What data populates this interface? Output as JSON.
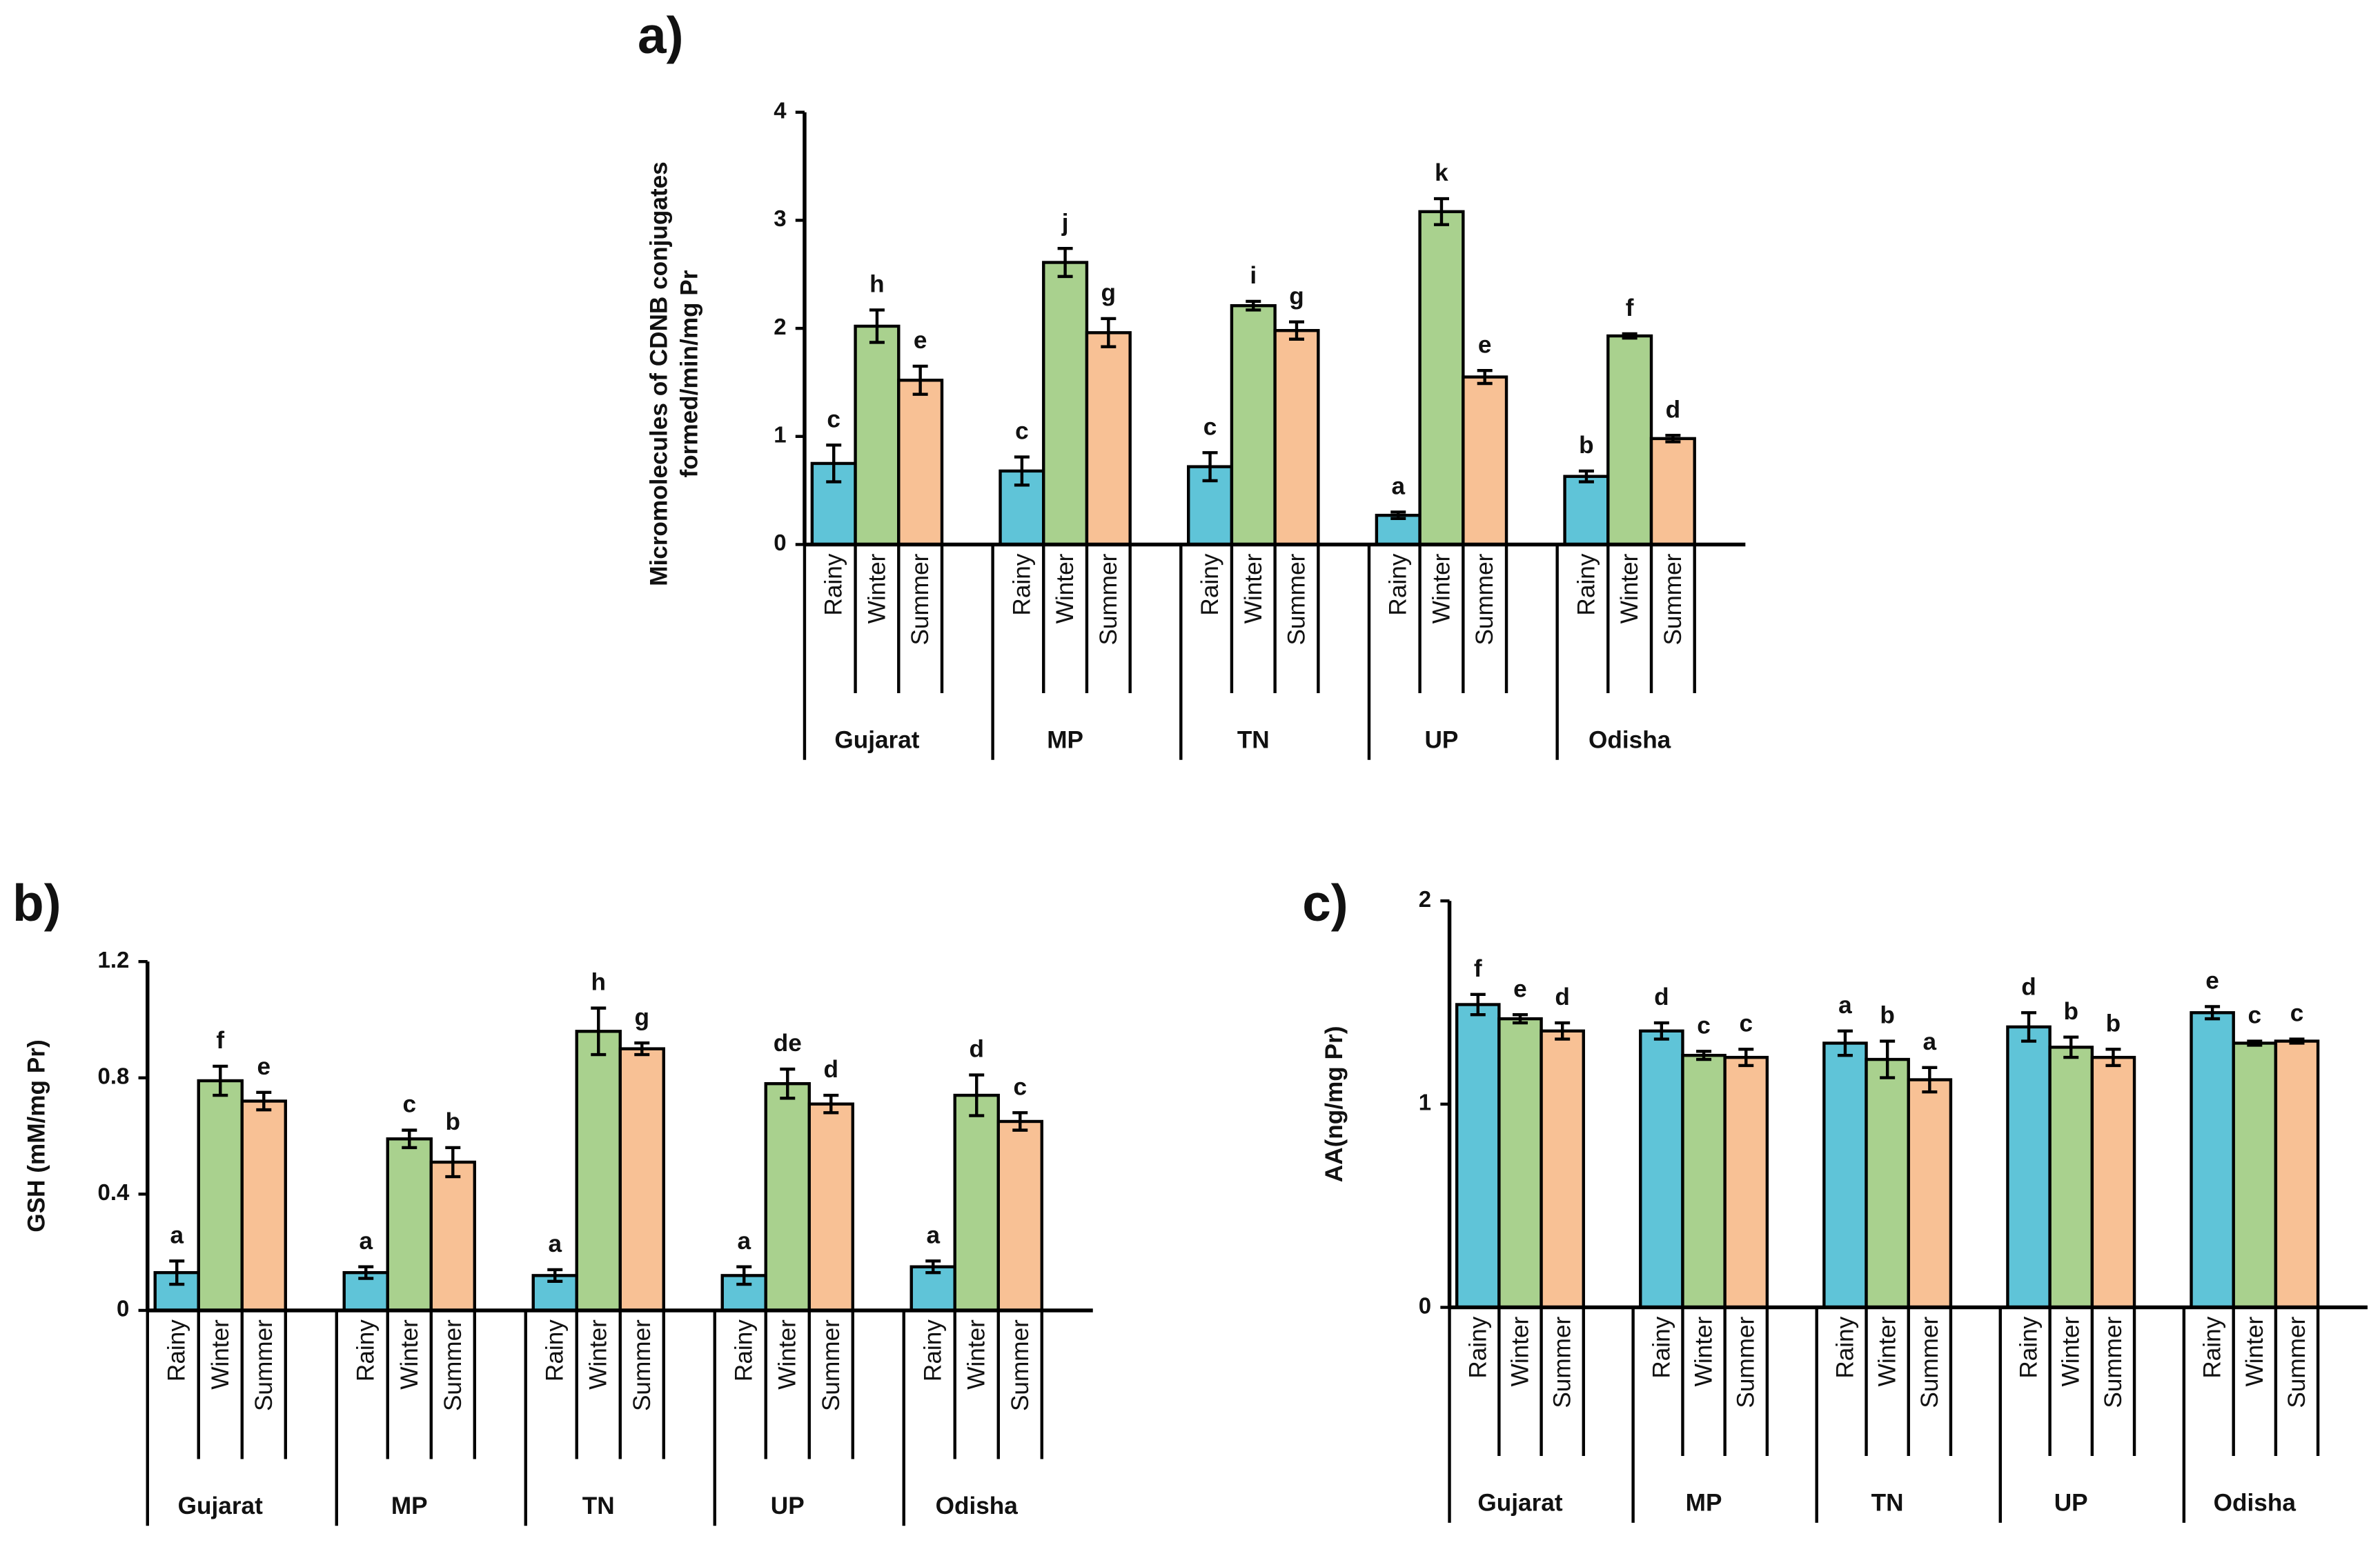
{
  "chart_data": [
    {
      "type": "bar",
      "panel": "a)",
      "ylabel": [
        "Micromolecules of CDNB conjugates",
        "formed/min/mg Pr"
      ],
      "categories": [
        "Gujarat",
        "MP",
        "TN",
        "UP",
        "Odisha"
      ],
      "ylim": [
        0,
        4
      ],
      "yticks": [
        0,
        1,
        2,
        3,
        4
      ],
      "series": [
        {
          "name": "Rainy",
          "color": "#5fc4d8",
          "values": [
            0.75,
            0.68,
            0.72,
            0.27,
            0.63
          ],
          "errors": [
            0.17,
            0.13,
            0.13,
            0.03,
            0.05
          ],
          "letters": [
            "c",
            "c",
            "c",
            "a",
            "b"
          ]
        },
        {
          "name": "Winter",
          "color": "#a9d18e",
          "values": [
            2.02,
            2.61,
            2.21,
            3.08,
            1.93
          ],
          "errors": [
            0.15,
            0.13,
            0.04,
            0.12,
            0.02
          ],
          "letters": [
            "h",
            "j",
            "i",
            "k",
            "f"
          ]
        },
        {
          "name": "Summer",
          "color": "#f8c195",
          "values": [
            1.52,
            1.96,
            1.98,
            1.55,
            0.98
          ],
          "errors": [
            0.13,
            0.13,
            0.08,
            0.06,
            0.03
          ],
          "letters": [
            "e",
            "g",
            "g",
            "e",
            "d"
          ]
        }
      ]
    },
    {
      "type": "bar",
      "panel": "b)",
      "ylabel": [
        "GSH (mM/mg Pr)"
      ],
      "categories": [
        "Gujarat",
        "MP",
        "TN",
        "UP",
        "Odisha"
      ],
      "ylim": [
        0,
        1.2
      ],
      "yticks": [
        0,
        0.4,
        0.8,
        1.2
      ],
      "series": [
        {
          "name": "Rainy",
          "color": "#5fc4d8",
          "values": [
            0.13,
            0.13,
            0.12,
            0.12,
            0.15
          ],
          "errors": [
            0.04,
            0.02,
            0.02,
            0.03,
            0.02
          ],
          "letters": [
            "a",
            "a",
            "a",
            "a",
            "a"
          ]
        },
        {
          "name": "Winter",
          "color": "#a9d18e",
          "values": [
            0.79,
            0.59,
            0.96,
            0.78,
            0.74
          ],
          "errors": [
            0.05,
            0.03,
            0.08,
            0.05,
            0.07
          ],
          "letters": [
            "f",
            "c",
            "h",
            "de",
            "d"
          ]
        },
        {
          "name": "Summer",
          "color": "#f8c195",
          "values": [
            0.72,
            0.51,
            0.9,
            0.71,
            0.65
          ],
          "errors": [
            0.03,
            0.05,
            0.02,
            0.03,
            0.03
          ],
          "letters": [
            "e",
            "b",
            "g",
            "d",
            "c"
          ]
        }
      ]
    },
    {
      "type": "bar",
      "panel": "c)",
      "ylabel": [
        "AA(ng/mg Pr)"
      ],
      "categories": [
        "Gujarat",
        "MP",
        "TN",
        "UP",
        "Odisha"
      ],
      "ylim": [
        0,
        2
      ],
      "yticks": [
        0,
        1,
        2
      ],
      "series": [
        {
          "name": "Rainy",
          "color": "#5fc4d8",
          "values": [
            1.49,
            1.36,
            1.3,
            1.38,
            1.45
          ],
          "errors": [
            0.05,
            0.04,
            0.06,
            0.07,
            0.03
          ],
          "letters": [
            "f",
            "d",
            "a",
            "d",
            "e"
          ]
        },
        {
          "name": "Winter",
          "color": "#a9d18e",
          "values": [
            1.42,
            1.24,
            1.22,
            1.28,
            1.3
          ],
          "errors": [
            0.02,
            0.02,
            0.09,
            0.05,
            0.01
          ],
          "letters": [
            "e",
            "c",
            "b",
            "b",
            "c"
          ]
        },
        {
          "name": "Summer",
          "color": "#f8c195",
          "values": [
            1.36,
            1.23,
            1.12,
            1.23,
            1.31
          ],
          "errors": [
            0.04,
            0.04,
            0.06,
            0.04,
            0.01
          ],
          "letters": [
            "d",
            "c",
            "a",
            "b",
            "c"
          ]
        }
      ]
    }
  ]
}
